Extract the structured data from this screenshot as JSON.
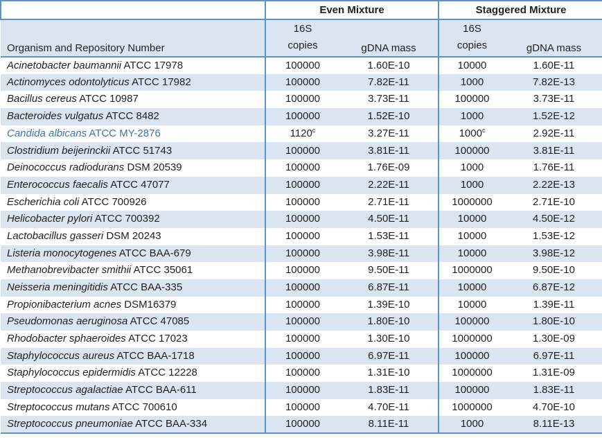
{
  "colors": {
    "border_blue": "#5b93ce",
    "stripe_blue": "#dbe5f1",
    "highlight_text_blue": "#4472a8",
    "text": "#1f1f1f"
  },
  "table": {
    "group_headers": {
      "even": "Even Mixture",
      "staggered": "Staggered Mixture"
    },
    "column_headers": {
      "organism": "Organism and Repository Number",
      "copies_line1": "16S",
      "copies_line2": "copies",
      "gdna_mass": "gDNA mass"
    },
    "rows": [
      {
        "name": "Acinetobacter baumannii",
        "repo": "ATCC 17978",
        "even_copies": "100000",
        "even_copies_note": "",
        "even_gdna": "1.60E-10",
        "stag_copies": "10000",
        "stag_copies_note": "",
        "stag_gdna": "1.60E-11",
        "highlight": false
      },
      {
        "name": "Actinomyces odontolyticus",
        "repo": "ATCC 17982",
        "even_copies": "100000",
        "even_copies_note": "",
        "even_gdna": "7.82E-11",
        "stag_copies": "1000",
        "stag_copies_note": "",
        "stag_gdna": "7.82E-13",
        "highlight": false
      },
      {
        "name": "Bacillus cereus",
        "repo": "ATCC 10987",
        "even_copies": "100000",
        "even_copies_note": "",
        "even_gdna": "3.73E-11",
        "stag_copies": "100000",
        "stag_copies_note": "",
        "stag_gdna": "3.73E-11",
        "highlight": false
      },
      {
        "name": "Bacteroides vulgatus",
        "repo": "ATCC 8482",
        "even_copies": "100000",
        "even_copies_note": "",
        "even_gdna": "1.52E-10",
        "stag_copies": "1000",
        "stag_copies_note": "",
        "stag_gdna": "1.52E-12",
        "highlight": false
      },
      {
        "name": "Candida albicans",
        "repo": "ATCC MY-2876",
        "even_copies": "1120",
        "even_copies_note": "c",
        "even_gdna": "3.27E-11",
        "stag_copies": "1000",
        "stag_copies_note": "c",
        "stag_gdna": "2.92E-11",
        "highlight": true
      },
      {
        "name": "Clostridium beijerinckii",
        "repo": "ATCC 51743",
        "even_copies": "100000",
        "even_copies_note": "",
        "even_gdna": "3.81E-11",
        "stag_copies": "100000",
        "stag_copies_note": "",
        "stag_gdna": "3.81E-11",
        "highlight": false
      },
      {
        "name": "Deinococcus radiodurans",
        "repo": "DSM 20539",
        "even_copies": "100000",
        "even_copies_note": "",
        "even_gdna": "1.76E-09",
        "stag_copies": "1000",
        "stag_copies_note": "",
        "stag_gdna": "1.76E-11",
        "highlight": false
      },
      {
        "name": "Enterococcus faecalis",
        "repo": "ATCC 47077",
        "even_copies": "100000",
        "even_copies_note": "",
        "even_gdna": "2.22E-11",
        "stag_copies": "1000",
        "stag_copies_note": "",
        "stag_gdna": "2.22E-13",
        "highlight": false
      },
      {
        "name": "Escherichia coli",
        "repo": "ATCC 700926",
        "even_copies": "100000",
        "even_copies_note": "",
        "even_gdna": "2.71E-11",
        "stag_copies": "1000000",
        "stag_copies_note": "",
        "stag_gdna": "2.71E-10",
        "highlight": false
      },
      {
        "name": "Helicobacter pylori",
        "repo": "ATCC 700392",
        "even_copies": "100000",
        "even_copies_note": "",
        "even_gdna": "4.50E-11",
        "stag_copies": "10000",
        "stag_copies_note": "",
        "stag_gdna": "4.50E-12",
        "highlight": false
      },
      {
        "name": "Lactobacillus gasseri",
        "repo": "DSM 20243",
        "even_copies": "100000",
        "even_copies_note": "",
        "even_gdna": "1.53E-11",
        "stag_copies": "10000",
        "stag_copies_note": "",
        "stag_gdna": "1.53E-12",
        "highlight": false
      },
      {
        "name": "Listeria monocytogenes",
        "repo": "ATCC BAA-679",
        "even_copies": "100000",
        "even_copies_note": "",
        "even_gdna": "3.98E-11",
        "stag_copies": "10000",
        "stag_copies_note": "",
        "stag_gdna": "3.98E-12",
        "highlight": false
      },
      {
        "name": "Methanobrevibacter smithii",
        "repo": "ATCC 35061",
        "even_copies": "100000",
        "even_copies_note": "",
        "even_gdna": "9.50E-11",
        "stag_copies": "1000000",
        "stag_copies_note": "",
        "stag_gdna": "9.50E-10",
        "highlight": false
      },
      {
        "name": "Neisseria meningitidis",
        "repo": "ATCC BAA-335",
        "even_copies": "100000",
        "even_copies_note": "",
        "even_gdna": "6.87E-11",
        "stag_copies": "10000",
        "stag_copies_note": "",
        "stag_gdna": "6.87E-12",
        "highlight": false
      },
      {
        "name": "Propionibacterium acnes",
        "repo": "DSM16379",
        "even_copies": "100000",
        "even_copies_note": "",
        "even_gdna": "1.39E-10",
        "stag_copies": "10000",
        "stag_copies_note": "",
        "stag_gdna": "1.39E-11",
        "highlight": false
      },
      {
        "name": "Pseudomonas aeruginosa",
        "repo": "ATCC 47085",
        "even_copies": "100000",
        "even_copies_note": "",
        "even_gdna": "1.80E-10",
        "stag_copies": "100000",
        "stag_copies_note": "",
        "stag_gdna": "1.80E-10",
        "highlight": false
      },
      {
        "name": "Rhodobacter sphaeroides",
        "repo": "ATCC 17023",
        "even_copies": "100000",
        "even_copies_note": "",
        "even_gdna": "1.30E-10",
        "stag_copies": "1000000",
        "stag_copies_note": "",
        "stag_gdna": "1.30E-09",
        "highlight": false
      },
      {
        "name": "Staphylococcus aureus",
        "repo": "ATCC BAA-1718",
        "even_copies": "100000",
        "even_copies_note": "",
        "even_gdna": "6.97E-11",
        "stag_copies": "100000",
        "stag_copies_note": "",
        "stag_gdna": "6.97E-11",
        "highlight": false
      },
      {
        "name": "Staphylococcus epidermidis",
        "repo": "ATCC 12228",
        "even_copies": "100000",
        "even_copies_note": "",
        "even_gdna": "1.31E-10",
        "stag_copies": "1000000",
        "stag_copies_note": "",
        "stag_gdna": "1.31E-09",
        "highlight": false
      },
      {
        "name": "Streptococcus agalactiae",
        "repo": "ATCC BAA-611",
        "even_copies": "100000",
        "even_copies_note": "",
        "even_gdna": "1.83E-11",
        "stag_copies": "100000",
        "stag_copies_note": "",
        "stag_gdna": "1.83E-11",
        "highlight": false
      },
      {
        "name": "Streptococcus mutans",
        "repo": "ATCC 700610",
        "even_copies": "100000",
        "even_copies_note": "",
        "even_gdna": "4.70E-11",
        "stag_copies": "1000000",
        "stag_copies_note": "",
        "stag_gdna": "4.70E-10",
        "highlight": false
      },
      {
        "name": "Streptococcus pneumoniae",
        "repo": "ATCC BAA-334",
        "even_copies": "100000",
        "even_copies_note": "",
        "even_gdna": "8.11E-11",
        "stag_copies": "1000",
        "stag_copies_note": "",
        "stag_gdna": "8.11E-13",
        "highlight": false
      }
    ]
  }
}
